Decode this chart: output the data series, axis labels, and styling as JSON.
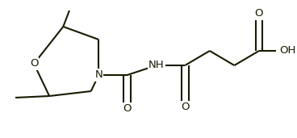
{
  "bg_color": "#ffffff",
  "line_color": "#1a1a00",
  "line_width": 1.5,
  "font_size": 9.5,
  "figsize": [
    3.68,
    1.71
  ],
  "dpi": 100,
  "xlim": [
    0,
    368
  ],
  "ylim": [
    0,
    171
  ]
}
